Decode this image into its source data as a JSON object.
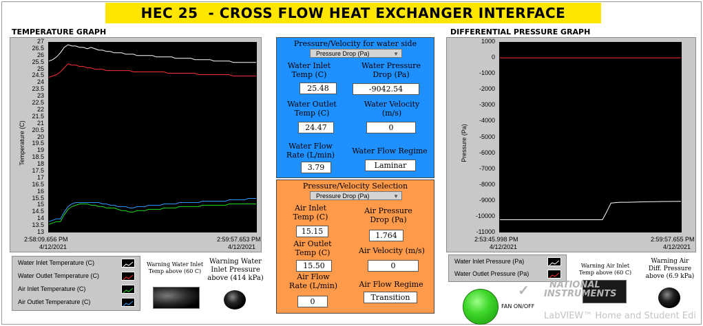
{
  "title": "HEC 25  - CROSS FLOW HEAT EXCHANGER INTERFACE",
  "temp_graph": {
    "label": "TEMPERATURE GRAPH",
    "y_label": "Temperature (C)",
    "y_ticks": [
      "27",
      "26.5",
      "26",
      "25.5",
      "25",
      "24.5",
      "24",
      "23.5",
      "23",
      "22.5",
      "22",
      "21.5",
      "21",
      "20.5",
      "20",
      "19.5",
      "19",
      "18.5",
      "18",
      "17.5",
      "17",
      "16.5",
      "16",
      "15.5",
      "15",
      "14.5",
      "14",
      "13.5",
      "13"
    ],
    "x_start": "2:58:09.656 PM",
    "x_start_date": "4/12/2021",
    "x_end": "2:59:57.653 PM",
    "x_end_date": "4/12/2021",
    "legend": [
      {
        "label": "Water Inlet Temperature (C)",
        "color": "#ffffff"
      },
      {
        "label": "Water Outlet Temperature (C)",
        "color": "#ff3030"
      },
      {
        "label": "Air Inlet Temperature (C)",
        "color": "#22dd22"
      },
      {
        "label": "Air Outlet Temperature (C)",
        "color": "#3399ff"
      }
    ]
  },
  "chart_data": [
    {
      "type": "line",
      "title": "TEMPERATURE GRAPH",
      "xlabel": "",
      "ylabel": "Temperature (C)",
      "ylim": [
        13,
        27
      ],
      "x": [
        0,
        2,
        4,
        6,
        8,
        10,
        12,
        14,
        16,
        18,
        20,
        22,
        24,
        26,
        28,
        30,
        32,
        34,
        36,
        38,
        40,
        42,
        44,
        46,
        48,
        50,
        52,
        54,
        56,
        58,
        60,
        62,
        64,
        66,
        68,
        70,
        72,
        74,
        76,
        78,
        80,
        82,
        84,
        86,
        88,
        90,
        92,
        94,
        96,
        98,
        100,
        102,
        104,
        106,
        108
      ],
      "series": [
        {
          "name": "Water Inlet Temperature (C)",
          "color": "#ffffff",
          "values": [
            25.6,
            25.7,
            25.9,
            26.2,
            26.6,
            26.8,
            26.7,
            26.7,
            26.6,
            26.6,
            26.5,
            26.6,
            26.5,
            26.4,
            26.4,
            26.3,
            26.3,
            26.2,
            26.2,
            26.2,
            26.1,
            26.1,
            26.1,
            26.0,
            26.0,
            26.0,
            26.0,
            26.0,
            25.9,
            25.9,
            25.9,
            25.9,
            25.9,
            25.8,
            25.8,
            25.8,
            25.8,
            25.8,
            25.7,
            25.7,
            25.7,
            25.7,
            25.7,
            25.6,
            25.6,
            25.6,
            25.6,
            25.6,
            25.5,
            25.5,
            25.5,
            25.5,
            25.5,
            25.5,
            25.5
          ]
        },
        {
          "name": "Water Outlet Temperature (C)",
          "color": "#ff3030",
          "values": [
            24.4,
            24.5,
            24.6,
            24.8,
            25.1,
            25.4,
            25.3,
            25.3,
            25.2,
            25.2,
            25.1,
            25.1,
            25.0,
            25.0,
            25.0,
            24.9,
            24.9,
            24.9,
            24.9,
            24.9,
            24.9,
            24.9,
            24.8,
            24.8,
            24.8,
            24.8,
            24.8,
            24.8,
            24.8,
            24.8,
            24.8,
            24.7,
            24.7,
            24.7,
            24.7,
            24.7,
            24.7,
            24.7,
            24.7,
            24.6,
            24.6,
            24.6,
            24.6,
            24.6,
            24.6,
            24.6,
            24.6,
            24.6,
            24.5,
            24.5,
            24.5,
            24.5,
            24.5,
            24.5,
            24.5
          ]
        },
        {
          "name": "Air Inlet Temperature (C)",
          "color": "#22dd22",
          "values": [
            13.6,
            13.7,
            13.8,
            13.8,
            14.3,
            14.7,
            14.9,
            15.0,
            15.1,
            15.1,
            15.1,
            15.0,
            15.0,
            14.9,
            14.9,
            14.8,
            14.8,
            14.8,
            14.7,
            14.6,
            14.6,
            14.5,
            14.5,
            14.6,
            14.6,
            14.6,
            14.7,
            14.7,
            14.7,
            14.7,
            14.8,
            14.8,
            14.8,
            14.8,
            14.9,
            14.9,
            14.9,
            14.9,
            14.9,
            14.9,
            15.0,
            15.0,
            15.0,
            15.0,
            15.0,
            15.0,
            15.0,
            15.1,
            15.1,
            15.1,
            15.1,
            15.1,
            15.1,
            15.1,
            15.1
          ]
        },
        {
          "name": "Air Outlet Temperature (C)",
          "color": "#3399ff",
          "values": [
            13.8,
            13.9,
            14.0,
            14.0,
            14.5,
            14.9,
            15.1,
            15.2,
            15.2,
            15.2,
            15.2,
            15.2,
            15.2,
            15.2,
            15.1,
            15.1,
            15.0,
            15.0,
            14.9,
            14.9,
            14.9,
            14.8,
            14.8,
            14.9,
            14.9,
            14.9,
            15.0,
            15.0,
            15.0,
            15.0,
            15.1,
            15.1,
            15.1,
            15.1,
            15.2,
            15.2,
            15.2,
            15.2,
            15.2,
            15.2,
            15.3,
            15.3,
            15.3,
            15.3,
            15.3,
            15.3,
            15.3,
            15.4,
            15.4,
            15.4,
            15.4,
            15.4,
            15.5,
            15.5,
            15.5
          ]
        }
      ]
    },
    {
      "type": "line",
      "title": "DIFFERENTIAL  PRESSURE GRAPH",
      "xlabel": "",
      "ylabel": "Pressure (Pa)",
      "ylim": [
        -11000,
        1000
      ],
      "x": [
        0,
        10,
        20,
        30,
        40,
        50,
        60,
        70,
        80,
        90,
        100,
        110,
        120,
        125,
        130,
        140,
        150,
        160,
        170,
        180,
        190,
        200,
        212
      ],
      "series": [
        {
          "name": "Water Inlet Pressure (Pa)",
          "color": "#ffffff",
          "values": [
            -10200,
            -10200,
            -10200,
            -10200,
            -10200,
            -10200,
            -10200,
            -10200,
            -10200,
            -10200,
            -10200,
            -10200,
            -10200,
            -9700,
            -9150,
            -9100,
            -9100,
            -9080,
            -9070,
            -9060,
            -9050,
            -9045,
            -9042.54
          ]
        },
        {
          "name": "Water Outlet Pressure (Pa)",
          "color": "#ff3030",
          "values": [
            0,
            0,
            0,
            0,
            0,
            0,
            0,
            0,
            0,
            0,
            0,
            0,
            0,
            0,
            0,
            0,
            0,
            0,
            0,
            0,
            0,
            0,
            0
          ]
        }
      ]
    }
  ],
  "water_panel": {
    "header": "Pressure/Velocity  for water side",
    "dropdown": "Pressure Drop (Pa)",
    "inlet_temp_label": "Water Inlet Temp (C)",
    "inlet_temp_l1": "Water Inlet",
    "inlet_temp_l2": "Temp (C)",
    "inlet_temp": "25.48",
    "pdrop_l1": "Water Pressure",
    "pdrop_l2": "Drop (Pa)",
    "pdrop": "-9042.54",
    "outlet_l1": "Water Outlet",
    "outlet_l2": "Temp (C)",
    "outlet_temp": "24.47",
    "vel_l1": "Water Velocity",
    "vel_l2": "(m/s)",
    "velocity": "0",
    "flow_l1": "Water Flow",
    "flow_l2": "Rate (L/min)",
    "flow_rate": "3.79",
    "regime_label": "Water Flow Regime",
    "regime": "Laminar"
  },
  "air_panel": {
    "header": "Pressure/Velocity  Selection",
    "dropdown": "Pressure Drop (Pa)",
    "inlet_l1": "Air Inlet",
    "inlet_l2": "Temp (C)",
    "inlet_temp": "15.15",
    "pdrop_l1": "Air Pressure",
    "pdrop_l2": "Drop (Pa)",
    "pdrop": "1.764",
    "outlet_l1": "Air Outlet",
    "outlet_l2": "Temp (C)",
    "outlet_temp": "15.50",
    "vel_label": "Air Velocity  (m/s)",
    "velocity": "0",
    "flow_l1": "Air Flow",
    "flow_l2": "Rate (L/min)",
    "flow_rate": "0",
    "regime_label": "Air  Flow Regime",
    "regime": "Transition"
  },
  "pressure_graph": {
    "label": "DIFFERENTIAL  PRESSURE GRAPH",
    "y_label": "Pressure (Pa)",
    "y_ticks": [
      "1000",
      "0",
      "-1000",
      "-2000",
      "-3000",
      "-4000",
      "-5000",
      "-6000",
      "-7000",
      "-8000",
      "-9000",
      "-10000",
      "-11000"
    ],
    "x_start": "2:53:45.998 PM",
    "x_start_date": "4/12/2021",
    "x_end": "2:59:57.655 PM",
    "x_end_date": "4/12/2021",
    "legend": [
      {
        "label": "Water Inlet Pressure (Pa)",
        "color": "#ffffff"
      },
      {
        "label": "Water Outlet Pressure (Pa)",
        "color": "#ff3030"
      }
    ]
  },
  "warnings": {
    "water_temp_l1": "Warning Water Inlet",
    "water_temp_l2": "Temp above (60 C)",
    "water_press_l1": "Warning Water",
    "water_press_l2": "Inlet Pressure",
    "water_press_l3": "above (414 kPa)",
    "air_temp_l1": "Warning Air Inlet",
    "air_temp_l2": "Temp above (60 C)",
    "air_press_l1": "Warning Air",
    "air_press_l2": "Diff. Pressure",
    "air_press_l3": "above (6.9 kPa)"
  },
  "fan_label": "FAN ON/OFF",
  "watermark": {
    "brand_l1": "NATIONAL",
    "brand_l2": "INSTRUMENTS",
    "product": "LabVIEW™ Home and Student Edi"
  }
}
